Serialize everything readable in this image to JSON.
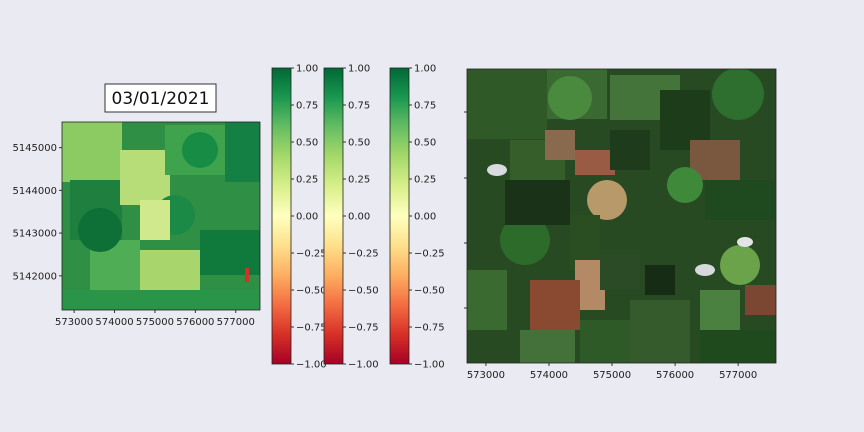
{
  "chart_data": [
    {
      "type": "heatmap",
      "title": "03/01/2021",
      "title_overlay": "03/01/2021",
      "xlabel": "",
      "ylabel": "",
      "colormap": "RdYlGn",
      "vmin": -1.0,
      "vmax": 1.0,
      "xlim": [
        572700,
        577600
      ],
      "ylim": [
        5141200,
        5145600
      ],
      "xticks": [
        573000,
        574000,
        575000,
        576000,
        577000
      ],
      "xtick_labels": [
        "573000",
        "574000",
        "575000",
        "576000",
        "577000"
      ],
      "yticks": [
        5142000,
        5143000,
        5144000,
        5145000
      ],
      "ytick_labels": [
        "5142000",
        "5143000",
        "5144000",
        "5145000"
      ],
      "grid": false
    },
    {
      "type": "colorbar",
      "colormap": "RdYlGn",
      "range": [
        -1.0,
        1.0
      ],
      "ticks": [
        1.0,
        0.75,
        0.5,
        0.25,
        0.0,
        -0.25,
        -0.5,
        -0.75,
        -1.0
      ],
      "tick_labels": [
        "1.00",
        "0.75",
        "0.50",
        "0.25",
        "0.00",
        "−0.25",
        "−0.50",
        "−0.75",
        "−1.00"
      ]
    },
    {
      "type": "colorbar",
      "colormap": "RdYlGn",
      "range": [
        -1.0,
        1.0
      ],
      "ticks": [
        1.0,
        0.75,
        0.5,
        0.25,
        0.0,
        -0.25,
        -0.5,
        -0.75,
        -1.0
      ],
      "tick_labels": [
        "1.00",
        "0.75",
        "0.50",
        "0.25",
        "0.00",
        "−0.25",
        "−0.50",
        "−0.75",
        "−1.00"
      ]
    },
    {
      "type": "colorbar",
      "colormap": "RdYlGn",
      "range": [
        -1.0,
        1.0
      ],
      "ticks": [
        1.0,
        0.75,
        0.5,
        0.25,
        0.0,
        -0.25,
        -0.5,
        -0.75,
        -1.0
      ],
      "tick_labels": [
        "1.00",
        "0.75",
        "0.50",
        "0.25",
        "0.00",
        "−0.25",
        "−0.50",
        "−0.75",
        "−1.00"
      ]
    },
    {
      "type": "image",
      "content": "true-color satellite image",
      "xlim": [
        572700,
        577600
      ],
      "xticks": [
        573000,
        574000,
        575000,
        576000,
        577000
      ],
      "xtick_labels": [
        "573000",
        "574000",
        "575000",
        "576000",
        "577000"
      ],
      "grid": false
    }
  ],
  "colors": {
    "background": "#eaeaf2",
    "ndvi_high": "#006837",
    "ndvi_mid": "#ffffbf",
    "ndvi_low": "#a50026"
  }
}
